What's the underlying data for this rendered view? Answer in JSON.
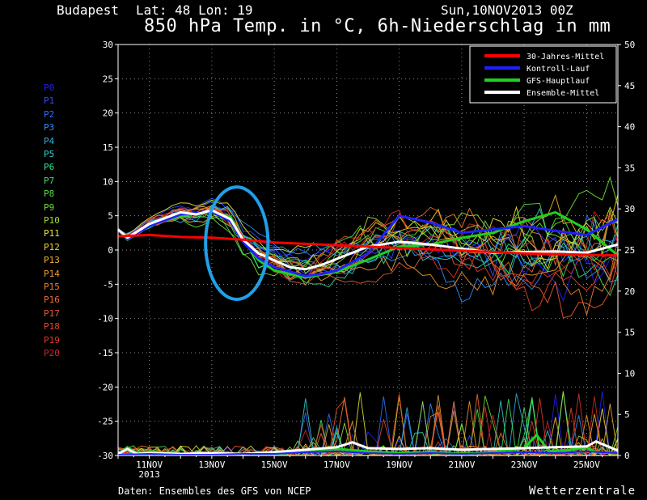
{
  "header": {
    "location": "Budapest",
    "coords": "Lat: 48 Lon: 19",
    "run": "Sun,10NOV2013 00Z",
    "title": "850 hPa Temp. in °C, 6h-Niederschlag in mm"
  },
  "footer": {
    "source": "Daten: Ensembles des GFS von NCEP",
    "brand": "Wetterzentrale"
  },
  "members": [
    {
      "label": "P0",
      "color": "#2020ff"
    },
    {
      "label": "P1",
      "color": "#2a4aff"
    },
    {
      "label": "P2",
      "color": "#2f6fff"
    },
    {
      "label": "P3",
      "color": "#2f90ff"
    },
    {
      "label": "P4",
      "color": "#30b0e8"
    },
    {
      "label": "P5",
      "color": "#30d0c8"
    },
    {
      "label": "P6",
      "color": "#30e090"
    },
    {
      "label": "P7",
      "color": "#40e060"
    },
    {
      "label": "P8",
      "color": "#50e040"
    },
    {
      "label": "P9",
      "color": "#70e030"
    },
    {
      "label": "P10",
      "color": "#a0e030"
    },
    {
      "label": "P11",
      "color": "#e8e830"
    },
    {
      "label": "P12",
      "color": "#f0d030"
    },
    {
      "label": "P13",
      "color": "#f0b030"
    },
    {
      "label": "P14",
      "color": "#f09a30"
    },
    {
      "label": "P15",
      "color": "#f08030"
    },
    {
      "label": "P16",
      "color": "#f06a30"
    },
    {
      "label": "P17",
      "color": "#f05830"
    },
    {
      "label": "P18",
      "color": "#e84828"
    },
    {
      "label": "P19",
      "color": "#e03828"
    },
    {
      "label": "P20",
      "color": "#d02828"
    }
  ],
  "chart_data": {
    "type": "line",
    "title": "850 hPa Temp. in °C, 6h-Niederschlag in mm",
    "x_ticks": [
      "11NOV",
      "13NOV",
      "15NOV",
      "17NOV",
      "19NOV",
      "21NOV",
      "23NOV",
      "25NOV"
    ],
    "x_tick_year": "2013",
    "x_range": [
      10,
      26
    ],
    "y_left": {
      "min": -30,
      "max": 30,
      "step": 5,
      "ticks": [
        "30",
        "25",
        "20",
        "15",
        "10",
        "5",
        "0",
        "-5",
        "-10",
        "-15",
        "-20",
        "-25",
        "-30"
      ]
    },
    "y_right": {
      "min": 0,
      "max": 50,
      "step": 5,
      "ticks": [
        "50",
        "45",
        "40",
        "35",
        "30",
        "25",
        "20",
        "15",
        "10",
        "5",
        "0"
      ]
    },
    "grid": true,
    "legend_position": "top-right",
    "legend": [
      {
        "name": "30-Jahres-Mittel",
        "color": "#ff0000"
      },
      {
        "name": "Kontroll-Lauf",
        "color": "#2020ff"
      },
      {
        "name": "GFS-Hauptlauf",
        "color": "#20d020"
      },
      {
        "name": "Ensemble-Mittel",
        "color": "#ffffff"
      }
    ],
    "temp_series": [
      {
        "name": "30-Jahres-Mittel",
        "color": "#ff0000",
        "width": 3,
        "x": [
          10,
          11,
          12,
          13,
          14,
          15,
          16,
          17,
          18,
          19,
          20,
          21,
          22,
          23,
          24,
          25,
          26
        ],
        "y": [
          2,
          2.2,
          1.9,
          1.8,
          1.5,
          1.1,
          0.9,
          0.7,
          0.5,
          0.3,
          0.1,
          -0.1,
          -0.3,
          -0.5,
          -0.6,
          -0.7,
          -0.8
        ]
      },
      {
        "name": "Ensemble-Mittel",
        "color": "#ffffff",
        "width": 3,
        "x": [
          10,
          10.3,
          11,
          12,
          12.5,
          13,
          13.6,
          14,
          14.5,
          15,
          15.5,
          16,
          16.5,
          17,
          18,
          19,
          20,
          21,
          22,
          23,
          24,
          25,
          26
        ],
        "y": [
          3,
          1.8,
          3.8,
          5.5,
          5.2,
          5.8,
          4.5,
          1.5,
          -0.5,
          -1.5,
          -2.5,
          -2.8,
          -2.2,
          -1.3,
          0.5,
          1.2,
          0.8,
          0.2,
          -0.4,
          -0.3,
          -0.2,
          -0.4,
          0.8
        ]
      },
      {
        "name": "Kontroll-Lauf",
        "color": "#2020ff",
        "width": 3,
        "x": [
          10,
          10.3,
          11,
          12,
          13,
          13.6,
          14,
          14.5,
          15,
          16,
          16.5,
          17,
          18,
          19,
          20,
          21,
          22,
          23,
          24,
          25,
          26
        ],
        "y": [
          3,
          1.6,
          3.5,
          5.2,
          5.6,
          4.2,
          1.2,
          -1.2,
          -2.5,
          -3.8,
          -3.5,
          -3,
          -0.5,
          5,
          4,
          2.5,
          3,
          3.5,
          2.8,
          2.2,
          4.5
        ]
      },
      {
        "name": "GFS-Hauptlauf",
        "color": "#20d020",
        "width": 3,
        "x": [
          10,
          10.3,
          11,
          12,
          13,
          13.6,
          14,
          14.5,
          15,
          16,
          17,
          18,
          19,
          20,
          21,
          22,
          23,
          24,
          25,
          26
        ],
        "y": [
          3,
          1.5,
          3.6,
          5,
          5.6,
          4.8,
          1.4,
          -1.5,
          -3,
          -4,
          -3.2,
          -1.4,
          0.5,
          0.8,
          1.8,
          2.5,
          4.2,
          5.5,
          3,
          -0.8
        ]
      }
    ],
    "precip_series": [
      {
        "name": "GFS-Hauptlauf",
        "color": "#20d020",
        "width": 3,
        "x": [
          10,
          10.3,
          10.6,
          11,
          12,
          13,
          14,
          15,
          16,
          17,
          18,
          19,
          20,
          21,
          22,
          23,
          23.4,
          23.8,
          24.5,
          25,
          25.3,
          26
        ],
        "y": [
          0.1,
          1.0,
          0.3,
          0.5,
          0.2,
          0.1,
          0.2,
          0.1,
          0.6,
          0.8,
          0.5,
          0.3,
          0.4,
          0.2,
          0.4,
          0.9,
          2.5,
          0.5,
          0.7,
          1.0,
          0.4,
          0.3
        ]
      },
      {
        "name": "Ensemble-Mittel",
        "color": "#ffffff",
        "width": 3,
        "x": [
          10,
          10.3,
          10.6,
          11,
          12,
          13,
          14,
          15,
          16,
          17,
          17.5,
          18,
          19,
          20,
          21,
          22,
          23,
          24,
          25,
          25.3,
          26
        ],
        "y": [
          0.2,
          0.8,
          0.2,
          0.3,
          0.2,
          0.3,
          0.2,
          0.4,
          0.7,
          1.0,
          1.6,
          0.9,
          0.8,
          0.9,
          0.7,
          0.8,
          0.9,
          1.0,
          1.1,
          1.7,
          0.6
        ]
      },
      {
        "name": "Kontroll-Lauf",
        "color": "#2020ff",
        "width": 2,
        "x": [
          10,
          11,
          12,
          13,
          14,
          15,
          16,
          17,
          18,
          19,
          20,
          21,
          22,
          23,
          24,
          25,
          26
        ],
        "y": [
          0.1,
          0.2,
          0.1,
          0.1,
          0.2,
          0.2,
          0.4,
          0.5,
          0.3,
          0.2,
          0.3,
          0.2,
          0.3,
          0.4,
          0.3,
          0.5,
          0.3
        ]
      }
    ],
    "annotation": {
      "type": "ellipse",
      "color": "#1fa0e8",
      "cx": 13.8,
      "cy": 1,
      "rx": 1.0,
      "ry": 8.2
    }
  }
}
